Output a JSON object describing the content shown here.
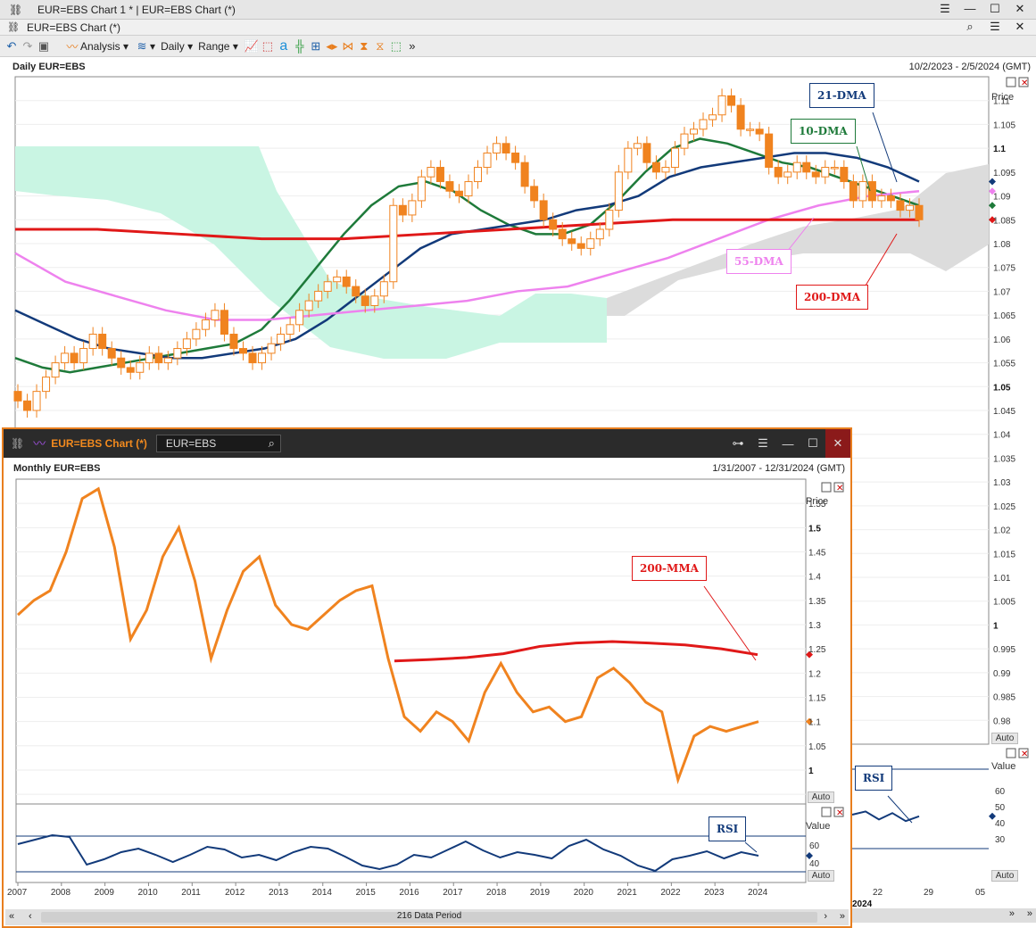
{
  "outer_window": {
    "title": "EUR=EBS Chart 1 * | EUR=EBS Chart (*)",
    "tab_title": "EUR=EBS Chart (*)",
    "toolbar": {
      "analysis_label": "Analysis",
      "daily_label": "Daily",
      "range_label": "Range"
    },
    "chart_title": "Daily EUR=EBS",
    "date_range": "10/2/2023 - 2/5/2024 (GMT)",
    "price_axis_label": "Price",
    "auto_label": "Auto",
    "rsi_value_label": "Value",
    "rsi_auto_label": "Auto",
    "annotations": {
      "dma21": "21-DMA",
      "dma10": "10-DMA",
      "dma55": "55-DMA",
      "dma200": "200-DMA",
      "rsi": "RSI"
    },
    "x_axis_partial": [
      "22",
      "29",
      "05"
    ],
    "year_partial": "2024"
  },
  "inner_window": {
    "title": "EUR=EBS Chart (*)",
    "search_value": "EUR=EBS",
    "chart_title": "Monthly EUR=EBS",
    "date_range": "1/31/2007 - 12/31/2024 (GMT)",
    "price_axis_label": "Price",
    "auto_label": "Auto",
    "rsi_value_label": "Value",
    "rsi_auto_label": "Auto",
    "annotations": {
      "mma200": "200-MMA",
      "rsi": "RSI"
    },
    "status": "216 Data Period"
  },
  "colors": {
    "candle_up": "#f0831f",
    "candle_down": "#f0831f",
    "dma10": "#1e7a3a",
    "dma21": "#123a7a",
    "dma55": "#ee82ee",
    "dma200": "#e01818",
    "cloud_green": "#c9f5e3",
    "cloud_grey": "#dcdcdc",
    "rsi": "#123a7a",
    "inner_border": "#e87e1e"
  },
  "chart_data": [
    {
      "type": "candlestick",
      "title": "Daily EUR=EBS",
      "ylabel": "Price",
      "ylim": [
        0.975,
        1.115
      ],
      "y_ticks": [
        "1.11",
        "1.105",
        "1.1",
        "1.095",
        "1.09",
        "1.085",
        "1.08",
        "1.075",
        "1.07",
        "1.065",
        "1.06",
        "1.055",
        "1.05",
        "1.045",
        "1.04",
        "1.035",
        "1.03",
        "1.025",
        "1.02",
        "1.015",
        "1.01",
        "1.005",
        "1",
        "0.995",
        "0.99",
        "0.985",
        "0.98"
      ],
      "closes": [
        1.047,
        1.045,
        1.049,
        1.052,
        1.055,
        1.057,
        1.055,
        1.058,
        1.061,
        1.058,
        1.056,
        1.054,
        1.053,
        1.055,
        1.057,
        1.055,
        1.056,
        1.058,
        1.06,
        1.062,
        1.064,
        1.066,
        1.061,
        1.058,
        1.057,
        1.055,
        1.057,
        1.059,
        1.061,
        1.063,
        1.066,
        1.068,
        1.07,
        1.072,
        1.073,
        1.071,
        1.069,
        1.067,
        1.069,
        1.072,
        1.088,
        1.086,
        1.089,
        1.094,
        1.096,
        1.093,
        1.091,
        1.09,
        1.093,
        1.096,
        1.099,
        1.101,
        1.099,
        1.097,
        1.092,
        1.089,
        1.085,
        1.083,
        1.081,
        1.08,
        1.079,
        1.081,
        1.083,
        1.087,
        1.095,
        1.1,
        1.101,
        1.097,
        1.095,
        1.096,
        1.1,
        1.103,
        1.104,
        1.106,
        1.107,
        1.111,
        1.109,
        1.104,
        1.104,
        1.103,
        1.096,
        1.094,
        1.095,
        1.097,
        1.095,
        1.094,
        1.096,
        1.096,
        1.093,
        1.089,
        1.093,
        1.089,
        1.09,
        1.089,
        1.087,
        1.088,
        1.085
      ],
      "series": [
        {
          "name": "10-DMA",
          "values": [
            1.056,
            1.054,
            1.053,
            1.054,
            1.055,
            1.056,
            1.057,
            1.058,
            1.059,
            1.062,
            1.068,
            1.075,
            1.082,
            1.088,
            1.092,
            1.093,
            1.091,
            1.087,
            1.084,
            1.082,
            1.082,
            1.084,
            1.089,
            1.095,
            1.1,
            1.102,
            1.101,
            1.099,
            1.097,
            1.096,
            1.094,
            1.092,
            1.09,
            1.088
          ]
        },
        {
          "name": "21-DMA",
          "values": [
            1.066,
            1.063,
            1.06,
            1.058,
            1.057,
            1.056,
            1.056,
            1.057,
            1.058,
            1.06,
            1.064,
            1.069,
            1.074,
            1.079,
            1.082,
            1.083,
            1.084,
            1.085,
            1.087,
            1.088,
            1.09,
            1.094,
            1.096,
            1.097,
            1.098,
            1.099,
            1.099,
            1.098,
            1.096,
            1.093
          ]
        },
        {
          "name": "55-DMA",
          "values": [
            1.078,
            1.072,
            1.069,
            1.066,
            1.064,
            1.064,
            1.065,
            1.066,
            1.067,
            1.068,
            1.07,
            1.071,
            1.074,
            1.077,
            1.081,
            1.085,
            1.088,
            1.09,
            1.091
          ]
        },
        {
          "name": "200-DMA",
          "values": [
            1.083,
            1.083,
            1.082,
            1.081,
            1.081,
            1.082,
            1.083,
            1.084,
            1.085,
            1.085,
            1.085,
            1.085
          ]
        }
      ]
    },
    {
      "type": "line",
      "title": "Monthly EUR=EBS",
      "ylabel": "Price",
      "ylim": [
        0.93,
        1.6
      ],
      "y_ticks": [
        "1.55",
        "1.5",
        "1.45",
        "1.4",
        "1.35",
        "1.3",
        "1.25",
        "1.2",
        "1.15",
        "1.1",
        "1.05",
        "1",
        "0.95"
      ],
      "x_ticks": [
        "2007",
        "2008",
        "2009",
        "2010",
        "2011",
        "2012",
        "2013",
        "2014",
        "2015",
        "2016",
        "2017",
        "2018",
        "2019",
        "2020",
        "2021",
        "2022",
        "2023",
        "2024"
      ],
      "values": [
        1.32,
        1.35,
        1.37,
        1.45,
        1.56,
        1.58,
        1.46,
        1.27,
        1.33,
        1.44,
        1.5,
        1.39,
        1.23,
        1.33,
        1.41,
        1.44,
        1.34,
        1.3,
        1.29,
        1.32,
        1.35,
        1.37,
        1.38,
        1.23,
        1.11,
        1.08,
        1.12,
        1.1,
        1.06,
        1.16,
        1.22,
        1.16,
        1.12,
        1.13,
        1.1,
        1.11,
        1.19,
        1.21,
        1.18,
        1.14,
        1.12,
        0.98,
        1.07,
        1.09,
        1.08,
        1.09,
        1.1
      ],
      "series": [
        {
          "name": "200-MMA",
          "values": [
            1.225,
            1.228,
            1.232,
            1.24,
            1.255,
            1.262,
            1.265,
            1.262,
            1.258,
            1.25,
            1.238
          ]
        }
      ]
    },
    {
      "type": "line",
      "title": "RSI",
      "ylabel": "Value",
      "y_ticks": [
        "60",
        "40"
      ],
      "values": [
        61,
        66,
        71,
        69,
        38,
        44,
        52,
        56,
        49,
        41,
        49,
        58,
        55,
        46,
        49,
        43,
        52,
        58,
        56,
        47,
        37,
        33,
        38,
        49,
        46,
        55,
        64,
        54,
        46,
        52,
        49,
        45,
        59,
        66,
        55,
        48,
        37,
        31,
        44,
        48,
        53,
        45,
        52,
        48
      ]
    },
    {
      "type": "line",
      "title": "RSI",
      "ylabel": "Value",
      "y_ticks": [
        "60",
        "50",
        "40",
        "30"
      ],
      "values": [
        45,
        47,
        42,
        46,
        41,
        44
      ]
    }
  ]
}
